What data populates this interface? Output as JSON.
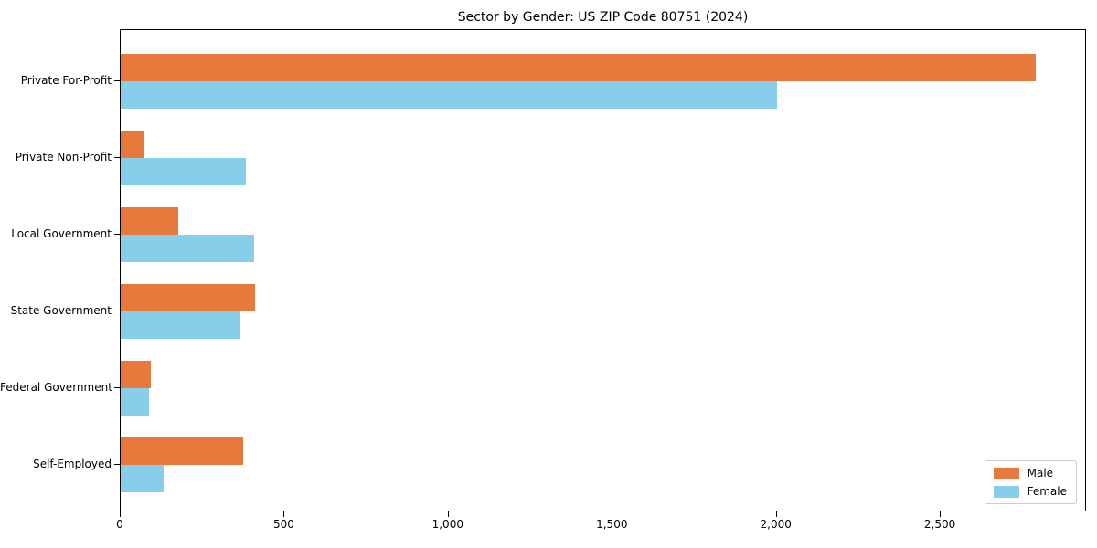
{
  "chart_data": {
    "type": "bar",
    "orientation": "horizontal",
    "title": "Sector by Gender: US ZIP Code 80751 (2024)",
    "categories": [
      "Private For-Profit",
      "Private Non-Profit",
      "Local Government",
      "State Government",
      "Federal Government",
      "Self-Employed"
    ],
    "series": [
      {
        "name": "Male",
        "color": "#e8793c",
        "values": [
          2790,
          72,
          175,
          410,
          92,
          372
        ]
      },
      {
        "name": "Female",
        "color": "#87ceeb",
        "values": [
          2000,
          381,
          406,
          366,
          86,
          131
        ]
      }
    ],
    "xlabel": "",
    "ylabel": "",
    "xlim": [
      0,
      2940
    ],
    "x_ticks": [
      0,
      500,
      1000,
      1500,
      2000,
      2500
    ],
    "x_tick_labels": [
      "0",
      "500",
      "1,000",
      "1,500",
      "2,000",
      "2,500"
    ],
    "grid": false,
    "legend": {
      "position": "lower right",
      "items": [
        "Male",
        "Female"
      ]
    },
    "colors": {
      "axis": "#000000",
      "legend_border": "#cccccc",
      "background": "#ffffff"
    }
  }
}
